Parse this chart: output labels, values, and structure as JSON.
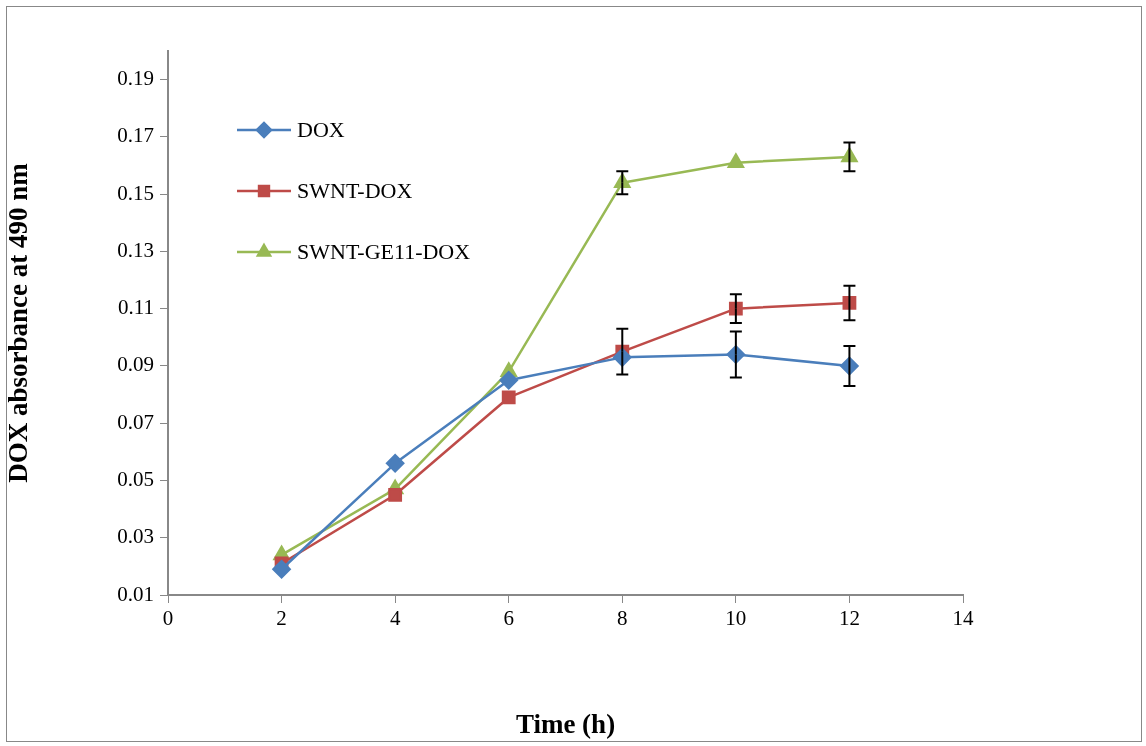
{
  "chart_data": {
    "type": "line",
    "xlabel": "Time (h)",
    "ylabel": "DOX absorbance at 490 nm",
    "x": [
      2,
      4,
      6,
      8,
      10,
      12
    ],
    "series": [
      {
        "name": "DOX",
        "color": "#4a7ebb",
        "marker": "diamond",
        "values": [
          0.019,
          0.056,
          0.085,
          0.093,
          0.094,
          0.09
        ],
        "errors": [
          null,
          null,
          null,
          null,
          0.008,
          0.007
        ]
      },
      {
        "name": "SWNT-DOX",
        "color": "#be4b48",
        "marker": "square",
        "values": [
          0.021,
          0.045,
          0.079,
          0.095,
          0.11,
          0.112
        ],
        "errors": [
          null,
          null,
          null,
          0.008,
          0.005,
          0.006
        ]
      },
      {
        "name": "SWNT-GE11-DOX",
        "color": "#98b954",
        "marker": "triangle",
        "values": [
          0.024,
          0.047,
          0.088,
          0.154,
          0.161,
          0.163
        ],
        "errors": [
          null,
          null,
          null,
          0.004,
          null,
          0.005
        ]
      }
    ],
    "xlim": [
      0,
      14
    ],
    "xticks": [
      0,
      2,
      4,
      6,
      8,
      10,
      12,
      14
    ],
    "ylim": [
      0.01,
      0.2
    ],
    "yticks": [
      {
        "value": 0.01,
        "label": "0.01"
      },
      {
        "value": 0.03,
        "label": "0.03"
      },
      {
        "value": 0.05,
        "label": "0.05"
      },
      {
        "value": 0.07,
        "label": "0.07"
      },
      {
        "value": 0.09,
        "label": "0.09"
      },
      {
        "value": 0.11,
        "label": "0.11"
      },
      {
        "value": 0.13,
        "label": "0.13"
      },
      {
        "value": 0.15,
        "label": "0.15"
      },
      {
        "value": 0.17,
        "label": "0.17"
      },
      {
        "value": 0.19,
        "label": "0.19"
      }
    ],
    "grid": false,
    "legend": "top left",
    "line_style": "solid"
  }
}
